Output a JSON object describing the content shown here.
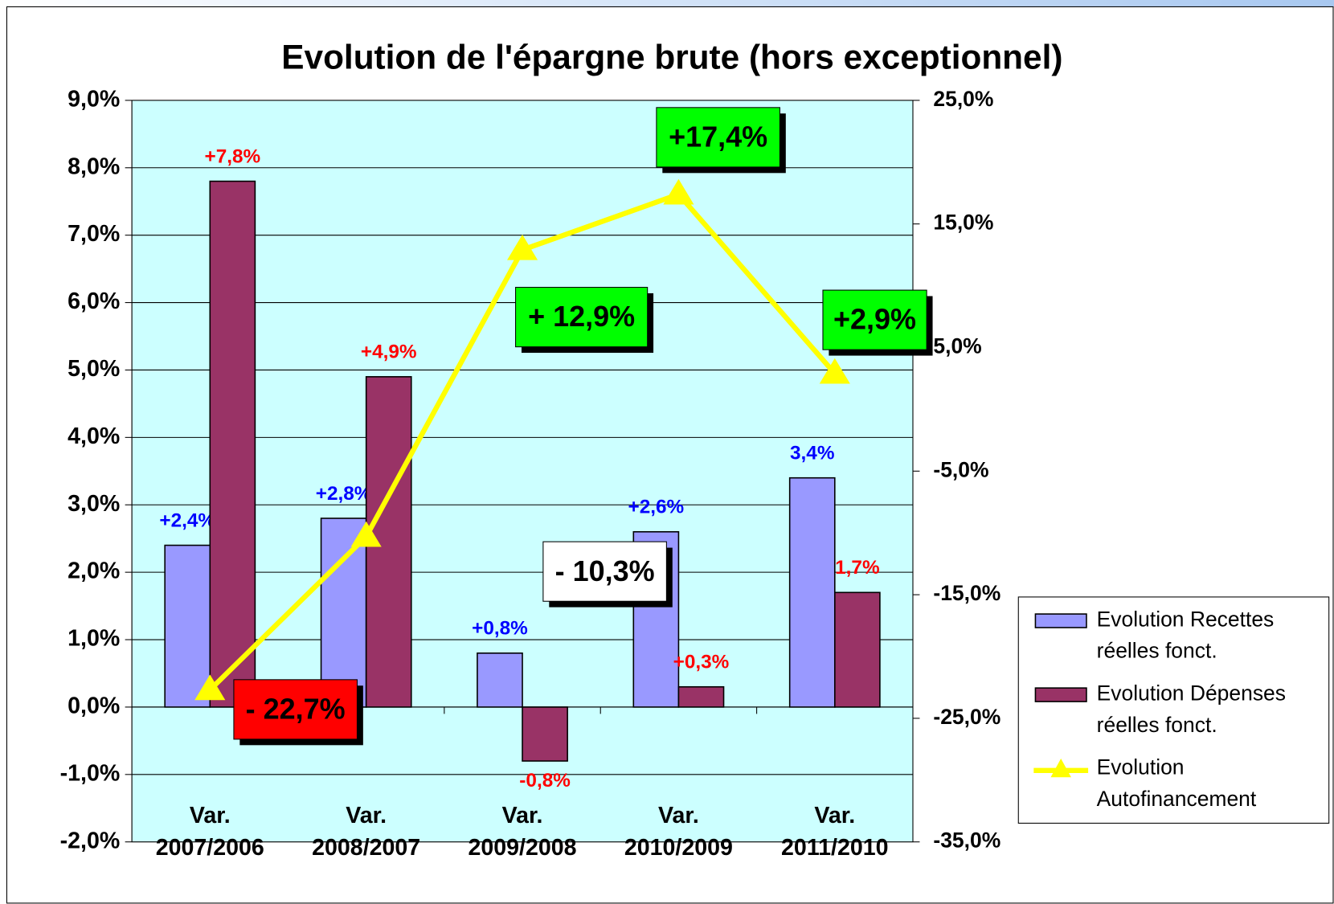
{
  "chart_data": {
    "type": "bar",
    "title": "Evolution de l'épargne brute (hors exceptionnel)",
    "categories": [
      "Var. 2007/2006",
      "Var. 2008/2007",
      "Var. 2009/2008",
      "Var. 2010/2009",
      "Var. 2011/2010"
    ],
    "series": [
      {
        "name": "Evolution Recettes réelles fonct.",
        "color": "#9999ff",
        "label_color": "#0000ff",
        "values": [
          2.4,
          2.8,
          0.8,
          2.6,
          3.4
        ],
        "value_labels": [
          "+2,4%",
          "+2,8%",
          "+0,8%",
          "+2,6%",
          "3,4%"
        ]
      },
      {
        "name": "Evolution Dépenses réelles fonct.",
        "color": "#993366",
        "label_color": "#ff0000",
        "values": [
          7.8,
          4.9,
          -0.8,
          0.3,
          1.7
        ],
        "value_labels": [
          "+7,8%",
          "+4,9%",
          "-0,8%",
          "+0,3%",
          "1,7%"
        ]
      },
      {
        "name": "Evolution Autofinancement",
        "type": "line",
        "axis": "y2",
        "color": "#ffff00",
        "values": [
          -22.7,
          -10.3,
          12.9,
          17.4,
          2.9
        ],
        "value_labels": [
          "- 22,7%",
          "- 10,3%",
          "+ 12,9%",
          "+17,4%",
          "+2,9%"
        ],
        "label_box_colors": [
          "#ff0000",
          "#ffffff",
          "#00ff00",
          "#00ff00",
          "#00ff00"
        ]
      }
    ],
    "ylim": [
      -2,
      9
    ],
    "yticks": [
      {
        "value": -2,
        "label": "-2,0%"
      },
      {
        "value": -1,
        "label": "-1,0%"
      },
      {
        "value": 0,
        "label": "0,0%"
      },
      {
        "value": 1,
        "label": "1,0%"
      },
      {
        "value": 2,
        "label": "2,0%"
      },
      {
        "value": 3,
        "label": "3,0%"
      },
      {
        "value": 4,
        "label": "4,0%"
      },
      {
        "value": 5,
        "label": "5,0%"
      },
      {
        "value": 6,
        "label": "6,0%"
      },
      {
        "value": 7,
        "label": "7,0%"
      },
      {
        "value": 8,
        "label": "8,0%"
      },
      {
        "value": 9,
        "label": "9,0%"
      }
    ],
    "y2lim": [
      -35,
      25
    ],
    "y2ticks": [
      {
        "value": -35,
        "label": "-35,0%"
      },
      {
        "value": -25,
        "label": "-25,0%"
      },
      {
        "value": -15,
        "label": "-15,0%"
      },
      {
        "value": -5,
        "label": "-5,0%"
      },
      {
        "value": 5,
        "label": "5,0%"
      },
      {
        "value": 15,
        "label": "15,0%"
      },
      {
        "value": 25,
        "label": "25,0%"
      }
    ],
    "grid": true,
    "legend": "right"
  }
}
